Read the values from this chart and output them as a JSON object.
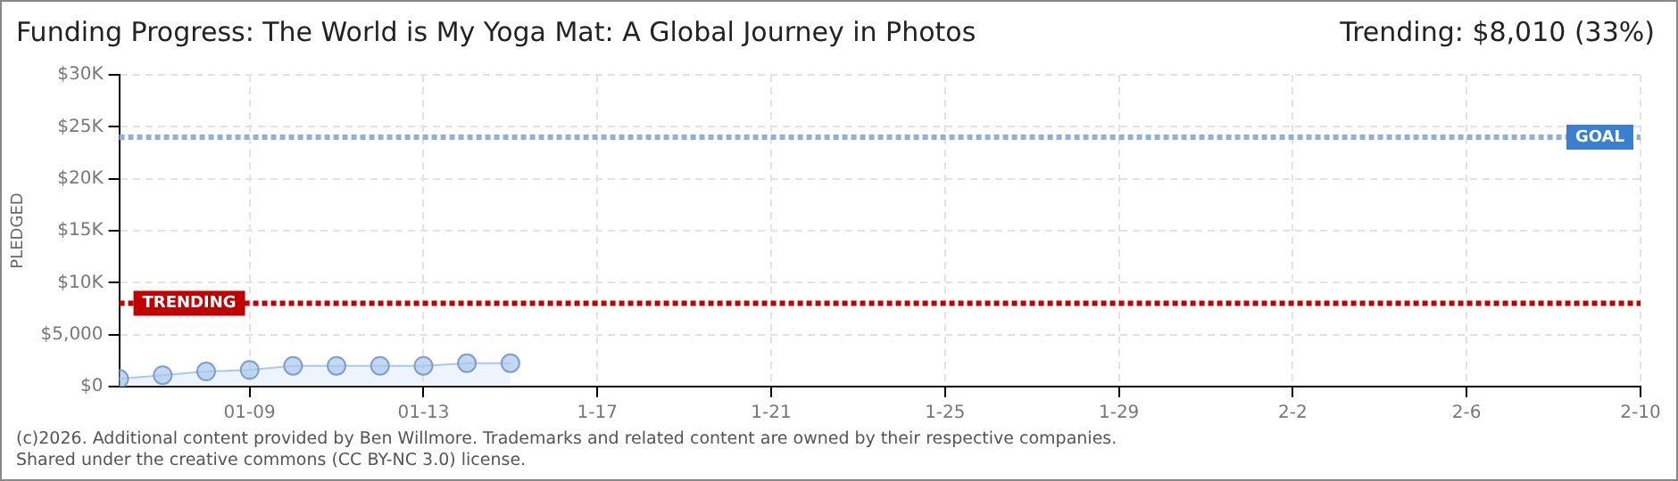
{
  "chart_data": {
    "type": "area",
    "title": "Funding Progress: The World is My Yoga Mat: A Global Journey in Photos",
    "ylabel": "PLEDGED",
    "annotations": [
      "Trending: $8,010 (33%)",
      "(c)2026. Additional content provided by Ben Willmore. Trademarks and related content are owned by their respective companies.",
      "Shared under the creative commons (CC BY-NC 3.0) license."
    ],
    "x": [
      "--01-06",
      "--01-07",
      "--01-08",
      "--01-09",
      "--01-10",
      "--01-11",
      "--01-12",
      "--01-13",
      "--01-14",
      "--01-15"
    ],
    "series": [
      {
        "color": "#a9c8ec",
        "values": [
          750,
          1100,
          1450,
          1600,
          2000,
          2000,
          2000,
          2000,
          2250,
          2250
        ]
      }
    ],
    "marker": "circle",
    "grid": true,
    "legend": false,
    "xlim": [
      "--01-06",
      "--02-10"
    ],
    "xticks": [
      {
        "value": "--01-09",
        "label": "01-09"
      },
      {
        "value": "--01-13",
        "label": "01-13"
      },
      {
        "value": "--01-17",
        "label": "1-17"
      },
      {
        "value": "--01-21",
        "label": "1-21"
      },
      {
        "value": "--01-25",
        "label": "1-25"
      },
      {
        "value": "--01-29",
        "label": "1-29"
      },
      {
        "value": "--02-02",
        "label": "2-2"
      },
      {
        "value": "--02-06",
        "label": "2-6"
      },
      {
        "value": "--02-10",
        "label": "2-10"
      }
    ],
    "ylim": [
      0,
      30000
    ],
    "yticks": [
      {
        "value": 0,
        "label": "$0"
      },
      {
        "value": 5000,
        "label": "$5,000"
      },
      {
        "value": 10000,
        "label": "$10K"
      },
      {
        "value": 15000,
        "label": "$15K"
      },
      {
        "value": 20000,
        "label": "$20K"
      },
      {
        "value": 25000,
        "label": "$25K"
      },
      {
        "value": 30000,
        "label": "$30K"
      }
    ],
    "ref_lines": [
      {
        "axis": "y",
        "value": 24000,
        "label": "GOAL",
        "color": "#8fb0d8",
        "line_style": "dotted"
      },
      {
        "axis": "y",
        "value": 8010,
        "label": "TRENDING",
        "color": "#c00000",
        "line_style": "dotted"
      }
    ]
  }
}
